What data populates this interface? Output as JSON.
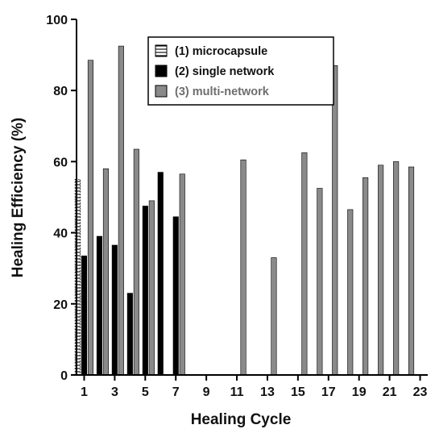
{
  "chart_data": {
    "type": "bar",
    "xlabel": "Healing Cycle",
    "ylabel": "Healing Efficiency (%)",
    "ylim": [
      0,
      100
    ],
    "xlim": [
      0.5,
      23.5
    ],
    "yticks": [
      0,
      20,
      40,
      60,
      80,
      100
    ],
    "xticks": [
      1,
      3,
      5,
      7,
      9,
      11,
      13,
      15,
      17,
      19,
      21,
      23
    ],
    "grid": false,
    "legend_position": "top-center",
    "series": [
      {
        "name": "(1) microcapsule",
        "style": "hatched",
        "color": "#ffffff",
        "points": [
          {
            "x": 1,
            "y": 55
          }
        ]
      },
      {
        "name": "(2) single network",
        "style": "solid",
        "color": "#000000",
        "points": [
          {
            "x": 1,
            "y": 33.5
          },
          {
            "x": 2,
            "y": 39
          },
          {
            "x": 3,
            "y": 36.5
          },
          {
            "x": 4,
            "y": 23
          },
          {
            "x": 5,
            "y": 47.5
          },
          {
            "x": 6,
            "y": 57
          },
          {
            "x": 7,
            "y": 44.5
          }
        ]
      },
      {
        "name": "(3) multi-network",
        "style": "solid",
        "color": "#8a8a8a",
        "points": [
          {
            "x": 1,
            "y": 88.5
          },
          {
            "x": 2,
            "y": 58
          },
          {
            "x": 3,
            "y": 92.5
          },
          {
            "x": 4,
            "y": 63.5
          },
          {
            "x": 5,
            "y": 49
          },
          {
            "x": 6,
            "y": 0
          },
          {
            "x": 7,
            "y": 56.5
          },
          {
            "x": 11,
            "y": 60.5
          },
          {
            "x": 13,
            "y": 33
          },
          {
            "x": 15,
            "y": 62.5
          },
          {
            "x": 16,
            "y": 52.5
          },
          {
            "x": 17,
            "y": 87
          },
          {
            "x": 18,
            "y": 46.5
          },
          {
            "x": 19,
            "y": 55.5
          },
          {
            "x": 20,
            "y": 59
          },
          {
            "x": 21,
            "y": 60
          },
          {
            "x": 22,
            "y": 58.5
          }
        ]
      }
    ]
  }
}
